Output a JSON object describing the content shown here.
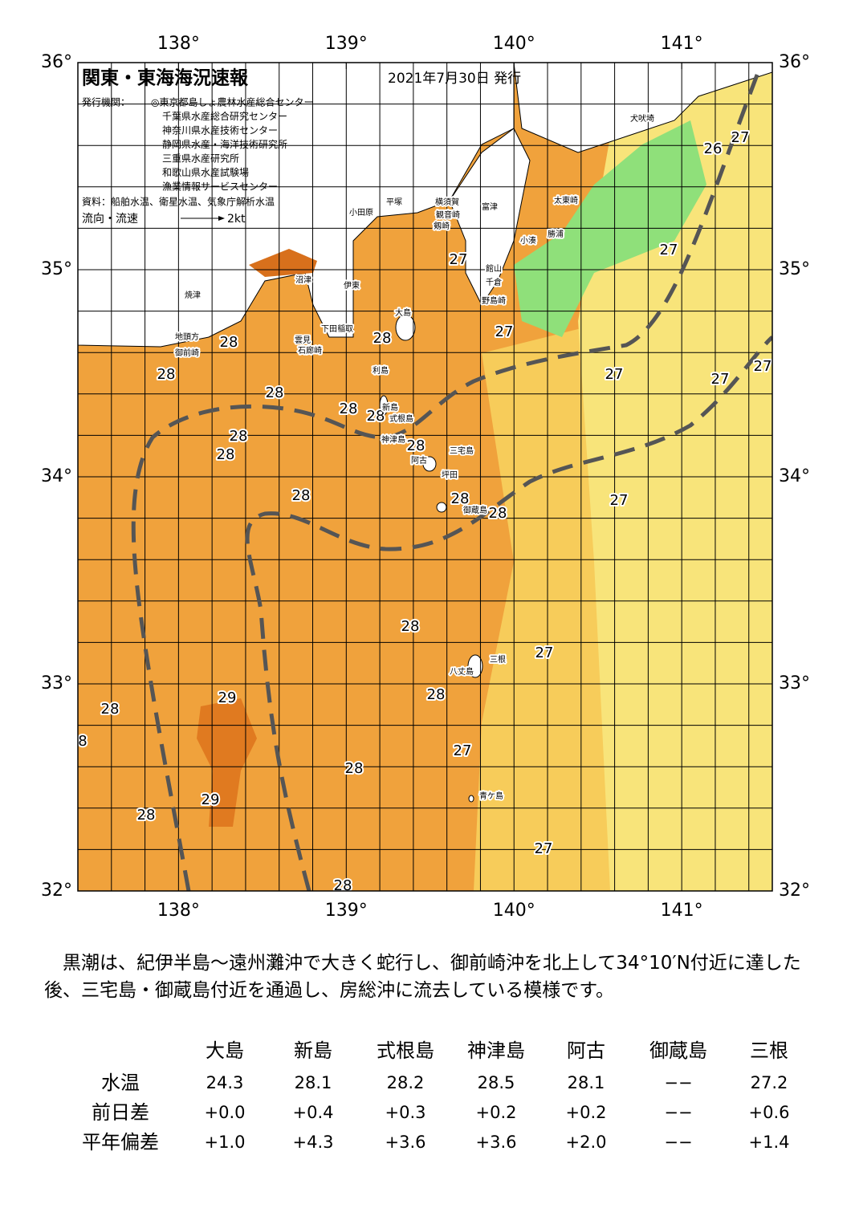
{
  "header": {
    "title": "関東・東海海況速報",
    "date": "2021年7月30日 発行",
    "issuer_label": "発行機関：",
    "issuers": [
      "◎東京都島しょ農林水産総合センター",
      "千葉県水産総合研究センター",
      "神奈川県水産技術センター",
      "静岡県水産・海洋技術研究所",
      "三重県水産研究所",
      "和歌山県水産試験場",
      "漁業情報サービスセンター"
    ],
    "source": "資料：船舶水温、衛星水温、気象庁解析水温",
    "legend_label": "流向・流速",
    "legend_scale": "2kt"
  },
  "map": {
    "xlim": [
      137.4,
      141.54
    ],
    "ylim": [
      32,
      36
    ],
    "xticks": [
      {
        "value": 138,
        "label": "138°"
      },
      {
        "value": 139,
        "label": "139°"
      },
      {
        "value": 140,
        "label": "140°"
      },
      {
        "value": 141,
        "label": "141°"
      }
    ],
    "yticks": [
      {
        "value": 32,
        "label": "32°"
      },
      {
        "value": 33,
        "label": "33°"
      },
      {
        "value": 34,
        "label": "34°"
      },
      {
        "value": 35,
        "label": "35°"
      },
      {
        "value": 36,
        "label": "36°"
      }
    ],
    "temperature_labels": [
      26,
      27,
      27,
      27,
      27,
      27,
      27,
      27,
      28,
      28,
      28,
      28,
      28,
      28,
      28,
      28,
      28,
      28,
      28,
      28,
      27,
      28,
      27,
      29,
      28,
      28,
      8,
      27,
      28,
      29,
      28,
      27,
      28
    ],
    "place_names": [
      "犬吠埼",
      "太東崎",
      "勝浦",
      "小湊",
      "館山",
      "千倉",
      "野島崎",
      "富津",
      "観音崎",
      "剱崎",
      "横須賀",
      "平塚",
      "小田原",
      "大島",
      "利島",
      "新島",
      "式根島",
      "神津島",
      "三宅島",
      "阿古",
      "坪田",
      "御蔵島",
      "八丈島",
      "三根",
      "青ケ島",
      "焼津",
      "御前崎",
      "地頭方",
      "沼津",
      "伊東",
      "稲取",
      "下田",
      "石廊崎",
      "雲見"
    ]
  },
  "description": "黒潮は、紀伊半島～遠州灘沖で大きく蛇行し、御前崎沖を北上して34°10′N付近に達した後、三宅島・御蔵島付近を通過し、房総沖に流去している模様です。",
  "table": {
    "columns": [
      "大島",
      "新島",
      "式根島",
      "神津島",
      "阿古",
      "御蔵島",
      "三根"
    ],
    "rows": [
      {
        "label": "水温",
        "values": [
          "24.3",
          "28.1",
          "28.2",
          "28.5",
          "28.1",
          "−−",
          "27.2"
        ]
      },
      {
        "label": "前日差",
        "values": [
          "+0.0",
          "+0.4",
          "+0.3",
          "+0.2",
          "+0.2",
          "−−",
          "+0.6"
        ]
      },
      {
        "label": "平年偏差",
        "values": [
          "+1.0",
          "+4.3",
          "+3.6",
          "+3.6",
          "+2.0",
          "−−",
          "+1.4"
        ]
      }
    ]
  }
}
